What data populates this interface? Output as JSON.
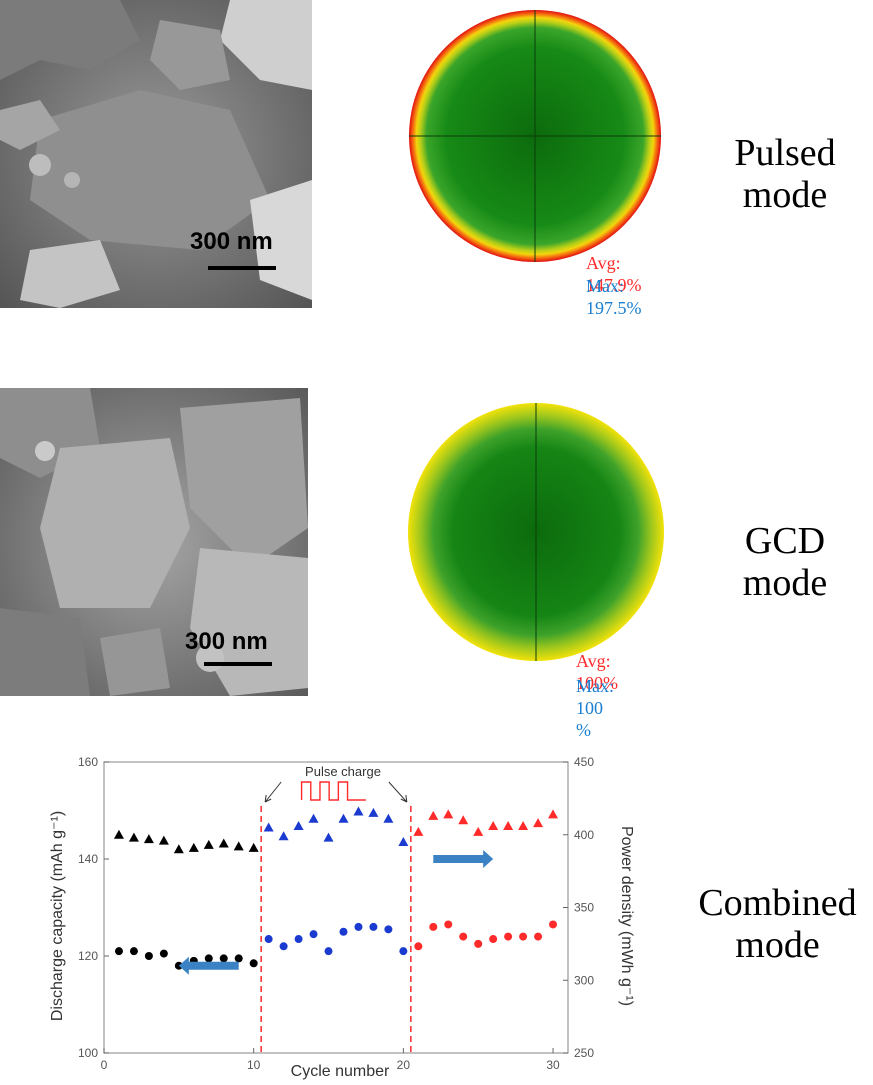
{
  "panels": [
    {
      "scale_bar": "300 nm",
      "stats": {
        "avg_label": "Avg: 147.9%",
        "max_label": "Max: 197.5%"
      },
      "label_line1": "Pulsed",
      "label_line2": "mode"
    },
    {
      "scale_bar": "300 nm",
      "stats": {
        "avg_label": "Avg: 100%",
        "max_label": "Max: 100 %"
      },
      "label_line1": "GCD",
      "label_line2": "mode"
    }
  ],
  "combined_label": {
    "line1": "Combined",
    "line2": "mode"
  },
  "colors": {
    "red": "#ff2a2a",
    "blue": "#1a7fd0",
    "green": "#1f9a1f",
    "yellow": "#f2e20a"
  },
  "chart_data": {
    "type": "scatter",
    "xlabel": "Cycle number",
    "ylabel_left": "Discharge capacity (mAh g⁻¹)",
    "ylabel_right": "Power density (mWh g⁻¹)",
    "xlim": [
      0,
      31
    ],
    "xticks": [
      0,
      10,
      20,
      30
    ],
    "ylim_left": [
      100,
      160
    ],
    "yticks_left": [
      100,
      120,
      140,
      160
    ],
    "ylim_right": [
      250,
      450
    ],
    "yticks_right": [
      250,
      300,
      350,
      400,
      450
    ],
    "annotation": "Pulse charge",
    "vlines": [
      10.5,
      20.5
    ],
    "series": [
      {
        "marker": "circle",
        "axis": "left",
        "color": "#000000",
        "x": [
          1,
          2,
          3,
          4,
          5,
          6,
          7,
          8,
          9,
          10
        ],
        "y": [
          121,
          121,
          120,
          120.5,
          118,
          119,
          119.5,
          119.5,
          119.5,
          118.5
        ]
      },
      {
        "marker": "circle",
        "axis": "left",
        "color": "#1a3ad0",
        "x": [
          11,
          12,
          13,
          14,
          15,
          16,
          17,
          18,
          19,
          20
        ],
        "y": [
          123.5,
          122,
          123.5,
          124.5,
          121,
          125,
          126,
          126,
          125.5,
          121
        ]
      },
      {
        "marker": "circle",
        "axis": "left",
        "color": "#ff2a2a",
        "x": [
          21,
          22,
          23,
          24,
          25,
          26,
          27,
          28,
          29,
          30
        ],
        "y": [
          122,
          126,
          126.5,
          124,
          122.5,
          123.5,
          124,
          124,
          124,
          126.5
        ]
      },
      {
        "marker": "triangle",
        "axis": "right",
        "color": "#000000",
        "x": [
          1,
          2,
          3,
          4,
          5,
          6,
          7,
          8,
          9,
          10
        ],
        "y": [
          400,
          398,
          397,
          396,
          390,
          391,
          393,
          394,
          392,
          391
        ]
      },
      {
        "marker": "triangle",
        "axis": "right",
        "color": "#1a3ad0",
        "x": [
          11,
          12,
          13,
          14,
          15,
          16,
          17,
          18,
          19,
          20
        ],
        "y": [
          405,
          399,
          406,
          411,
          398,
          411,
          416,
          415,
          411,
          395
        ]
      },
      {
        "marker": "triangle",
        "axis": "right",
        "color": "#ff2a2a",
        "x": [
          21,
          22,
          23,
          24,
          25,
          26,
          27,
          28,
          29,
          30
        ],
        "y": [
          402,
          413,
          414,
          410,
          402,
          406,
          406,
          406,
          408,
          414
        ]
      }
    ],
    "arrows": [
      {
        "direction": "left",
        "axis": "left",
        "x_from": 9,
        "x_to": 5,
        "y": 118
      },
      {
        "direction": "right",
        "axis": "left",
        "x_from": 22,
        "x_to": 26,
        "y": 140
      }
    ]
  }
}
